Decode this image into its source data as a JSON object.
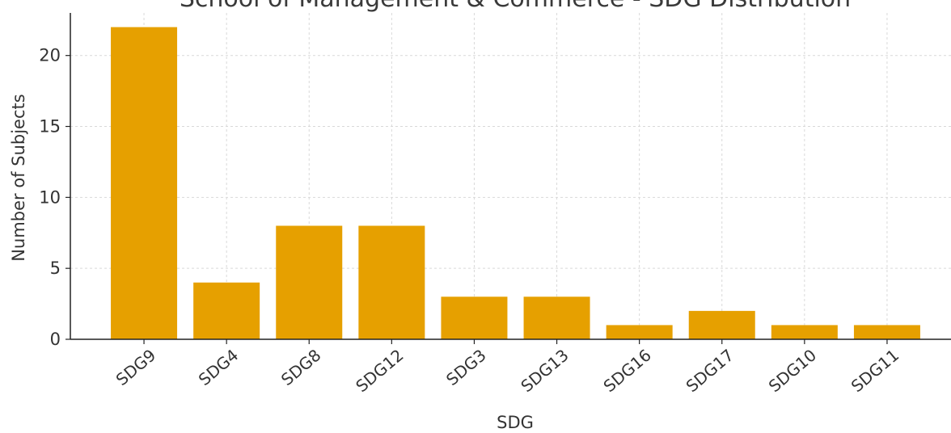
{
  "chart_data": {
    "type": "bar",
    "title": "School of Management & Commerce - SDG Distribution",
    "xlabel": "SDG",
    "ylabel": "Number of Subjects",
    "categories": [
      "SDG9",
      "SDG4",
      "SDG8",
      "SDG12",
      "SDG3",
      "SDG13",
      "SDG16",
      "SDG17",
      "SDG10",
      "SDG11"
    ],
    "values": [
      22,
      4,
      8,
      8,
      3,
      3,
      1,
      2,
      1,
      1
    ],
    "ylim": [
      0,
      23
    ],
    "yticks": [
      0,
      5,
      10,
      15,
      20
    ],
    "grid": true,
    "colors": {
      "bar": "#E6A000"
    }
  }
}
